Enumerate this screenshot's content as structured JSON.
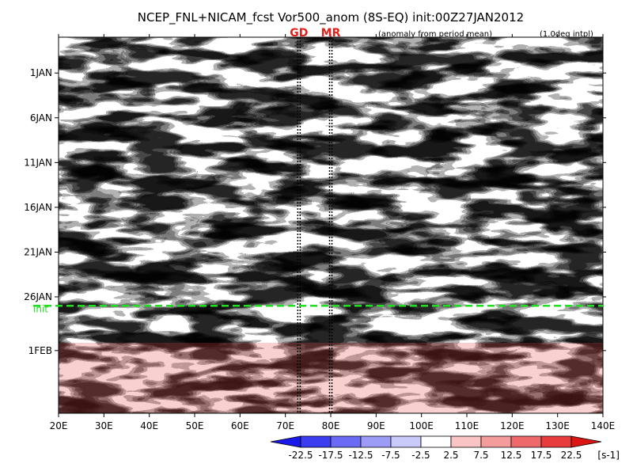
{
  "chart_data": {
    "type": "heatmap",
    "title": "NCEP_FNL+NICAM_fcst Vor500_anom (8S-EQ) init:00Z27JAN2012",
    "subtitle_left": "(anomaly from period mean)",
    "subtitle_right": "(1.0deg intpl)",
    "x_ticks": [
      "20E",
      "30E",
      "40E",
      "50E",
      "60E",
      "70E",
      "80E",
      "90E",
      "100E",
      "110E",
      "120E",
      "130E",
      "140E"
    ],
    "x_range": [
      20,
      140
    ],
    "y_ticks": [
      "1JAN",
      "6JAN",
      "11JAN",
      "16JAN",
      "21JAN",
      "26JAN",
      "1FEB"
    ],
    "y_tick_days": [
      1,
      6,
      11,
      16,
      21,
      26,
      32
    ],
    "y_range_days": [
      -3,
      39
    ],
    "markers": [
      {
        "label": "GD",
        "lon": 73
      },
      {
        "label": "MR",
        "lon": 80
      }
    ],
    "init_label": "init",
    "init_day": 27,
    "colorbar": {
      "levels": [
        "-22.5",
        "-17.5",
        "-12.5",
        "-7.5",
        "-2.5",
        "2.5",
        "7.5",
        "12.5",
        "17.5",
        "22.5"
      ],
      "colors": [
        "#1a1ae8",
        "#3c3cf0",
        "#6a6af4",
        "#9c9cf6",
        "#c9c9fa",
        "#ffffff",
        "#fac4c4",
        "#f49c9c",
        "#ee6a6a",
        "#e83c3c",
        "#dc1414"
      ],
      "unit": "[s-1]"
    }
  }
}
